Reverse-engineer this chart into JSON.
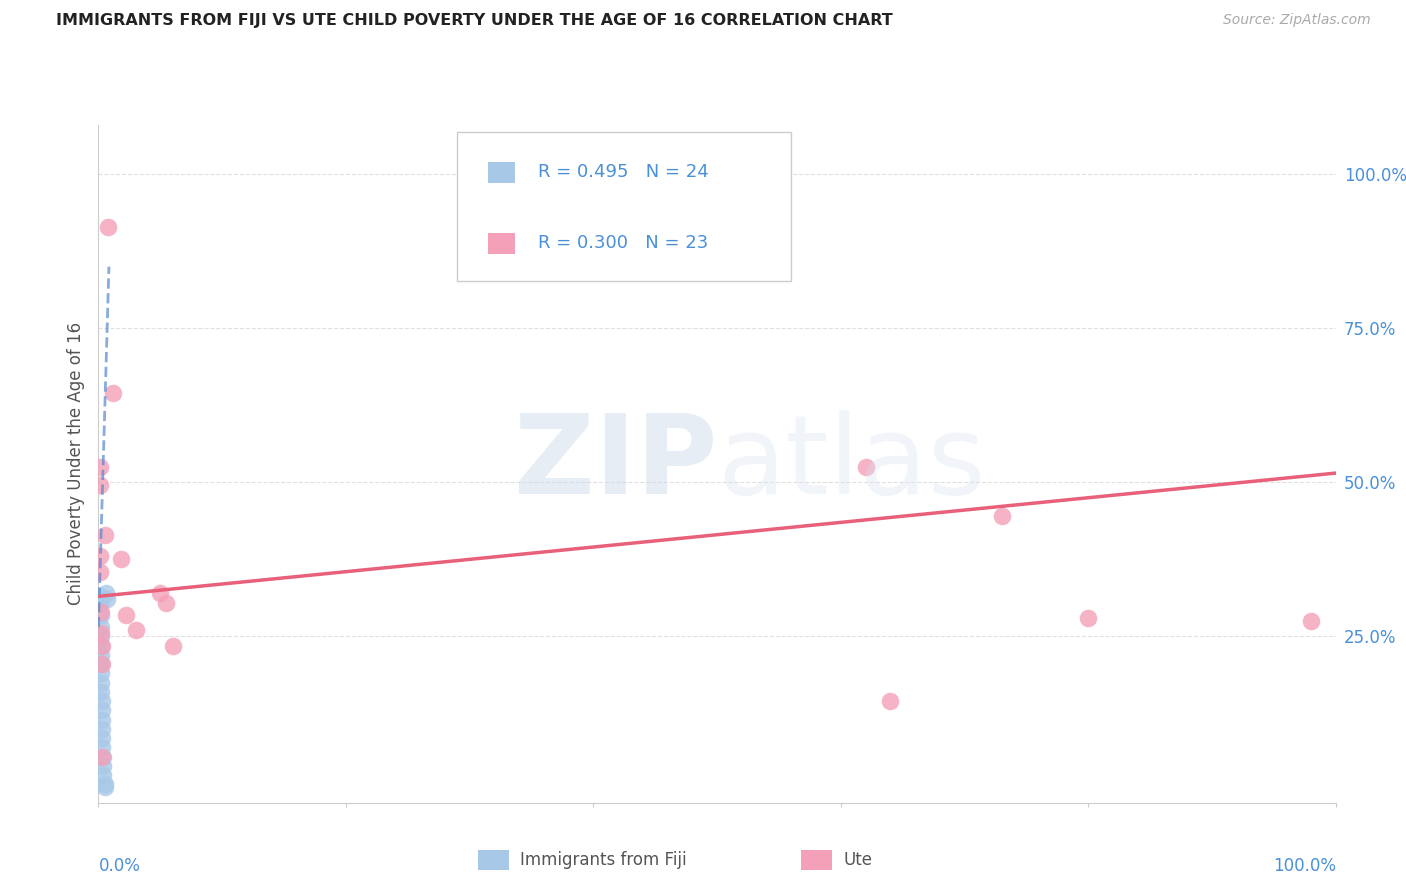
{
  "title": "IMMIGRANTS FROM FIJI VS UTE CHILD POVERTY UNDER THE AGE OF 16 CORRELATION CHART",
  "source": "Source: ZipAtlas.com",
  "ylabel": "Child Poverty Under the Age of 16",
  "ytick_labels": [
    "100.0%",
    "75.0%",
    "50.0%",
    "25.0%"
  ],
  "ytick_values": [
    1.0,
    0.75,
    0.5,
    0.25
  ],
  "xlim": [
    0.0,
    1.0
  ],
  "ylim": [
    -0.02,
    1.08
  ],
  "legend_label_blue": "Immigrants from Fiji",
  "legend_label_pink": "Ute",
  "blue_color": "#a8c8e8",
  "blue_dark": "#5588cc",
  "pink_color": "#f4a0b8",
  "pink_line_color": "#e8607a",
  "blue_scatter": [
    [
      0.001,
      0.315
    ],
    [
      0.001,
      0.305
    ],
    [
      0.002,
      0.285
    ],
    [
      0.002,
      0.265
    ],
    [
      0.002,
      0.25
    ],
    [
      0.002,
      0.235
    ],
    [
      0.002,
      0.22
    ],
    [
      0.002,
      0.205
    ],
    [
      0.002,
      0.19
    ],
    [
      0.002,
      0.175
    ],
    [
      0.002,
      0.16
    ],
    [
      0.003,
      0.145
    ],
    [
      0.003,
      0.13
    ],
    [
      0.003,
      0.115
    ],
    [
      0.003,
      0.1
    ],
    [
      0.003,
      0.085
    ],
    [
      0.003,
      0.07
    ],
    [
      0.004,
      0.055
    ],
    [
      0.004,
      0.04
    ],
    [
      0.004,
      0.025
    ],
    [
      0.005,
      0.01
    ],
    [
      0.005,
      0.005
    ],
    [
      0.006,
      0.32
    ],
    [
      0.007,
      0.31
    ]
  ],
  "pink_scatter": [
    [
      0.001,
      0.525
    ],
    [
      0.001,
      0.495
    ],
    [
      0.001,
      0.38
    ],
    [
      0.001,
      0.355
    ],
    [
      0.002,
      0.29
    ],
    [
      0.002,
      0.255
    ],
    [
      0.003,
      0.235
    ],
    [
      0.003,
      0.205
    ],
    [
      0.003,
      0.055
    ],
    [
      0.005,
      0.415
    ],
    [
      0.008,
      0.915
    ],
    [
      0.012,
      0.645
    ],
    [
      0.018,
      0.375
    ],
    [
      0.022,
      0.285
    ],
    [
      0.03,
      0.26
    ],
    [
      0.05,
      0.32
    ],
    [
      0.055,
      0.305
    ],
    [
      0.06,
      0.235
    ],
    [
      0.62,
      0.525
    ],
    [
      0.64,
      0.145
    ],
    [
      0.73,
      0.445
    ],
    [
      0.8,
      0.28
    ],
    [
      0.98,
      0.275
    ]
  ],
  "blue_trend_x": [
    0.0,
    0.0085
  ],
  "blue_trend_y": [
    0.265,
    0.85
  ],
  "pink_trend_x": [
    0.0,
    1.0
  ],
  "pink_trend_y": [
    0.315,
    0.515
  ],
  "background_color": "#ffffff",
  "grid_color": "#e0e0e0"
}
